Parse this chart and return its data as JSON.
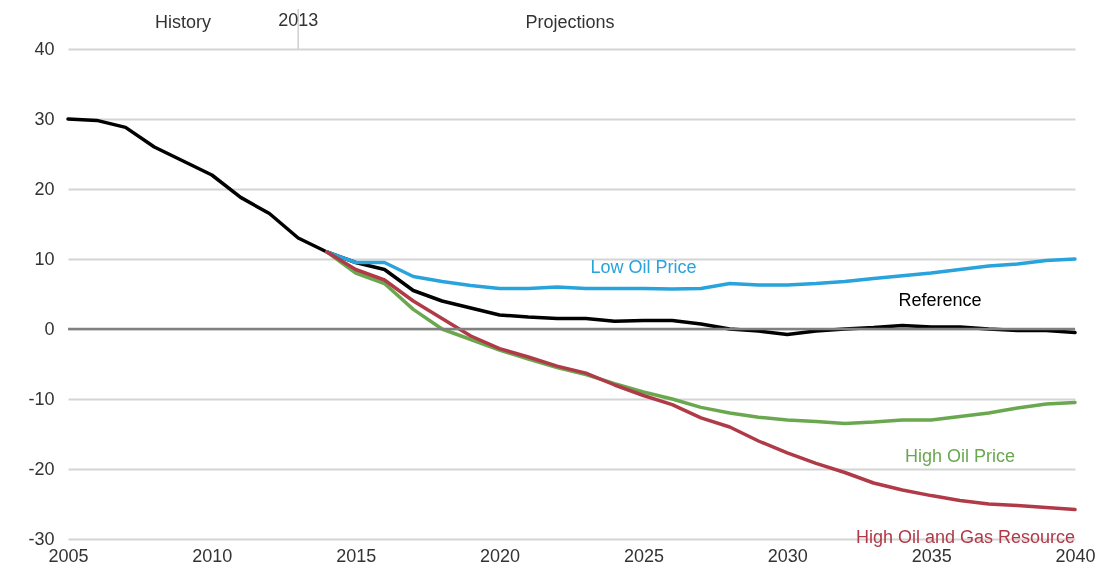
{
  "chart_data": {
    "type": "line",
    "x": [
      2005,
      2006,
      2007,
      2008,
      2009,
      2010,
      2011,
      2012,
      2013,
      2014,
      2015,
      2016,
      2017,
      2018,
      2019,
      2020,
      2021,
      2022,
      2023,
      2024,
      2025,
      2026,
      2027,
      2028,
      2029,
      2030,
      2031,
      2032,
      2033,
      2034,
      2035,
      2036,
      2037,
      2038,
      2039,
      2040
    ],
    "series": [
      {
        "name": "Reference",
        "color": "#000000",
        "values": [
          30,
          29.8,
          28.8,
          26,
          24,
          22,
          18.8,
          16.5,
          13,
          11,
          9.5,
          8.5,
          5.5,
          4,
          3,
          2,
          1.7,
          1.5,
          1.5,
          1.1,
          1.2,
          1.2,
          0.7,
          0,
          -0.3,
          -0.8,
          -0.3,
          0,
          0.2,
          0.5,
          0.3,
          0.3,
          0,
          -0.2,
          -0.2,
          -0.5
        ]
      },
      {
        "name": "Low Oil Price",
        "color": "#29a3dc",
        "x": [
          2014,
          2015,
          2016,
          2017,
          2018,
          2019,
          2020,
          2021,
          2022,
          2023,
          2024,
          2025,
          2026,
          2027,
          2028,
          2029,
          2030,
          2031,
          2032,
          2033,
          2034,
          2035,
          2036,
          2037,
          2038,
          2039,
          2040
        ],
        "values": [
          11,
          9.5,
          9.5,
          7.5,
          6.8,
          6.2,
          5.8,
          5.8,
          6,
          5.8,
          5.8,
          5.8,
          5.7,
          5.8,
          6.5,
          6.3,
          6.3,
          6.5,
          6.8,
          7.2,
          7.6,
          8,
          8.5,
          9,
          9.3,
          9.8,
          10
        ]
      },
      {
        "name": "High Oil Price",
        "color": "#6aa84f",
        "x": [
          2014,
          2015,
          2016,
          2017,
          2018,
          2019,
          2020,
          2021,
          2022,
          2023,
          2024,
          2025,
          2026,
          2027,
          2028,
          2029,
          2030,
          2031,
          2032,
          2033,
          2034,
          2035,
          2036,
          2037,
          2038,
          2039,
          2040
        ],
        "values": [
          11,
          8,
          6.5,
          2.8,
          0,
          -1.5,
          -3,
          -4.3,
          -5.5,
          -6.5,
          -7.8,
          -9,
          -10,
          -11.2,
          -12,
          -12.6,
          -13,
          -13.2,
          -13.5,
          -13.3,
          -13,
          -13,
          -12.5,
          -12,
          -11.3,
          -10.7,
          -10.5
        ]
      },
      {
        "name": "High Oil and Gas Resource",
        "color": "#b03a48",
        "x": [
          2014,
          2015,
          2016,
          2017,
          2018,
          2019,
          2020,
          2021,
          2022,
          2023,
          2024,
          2025,
          2026,
          2027,
          2028,
          2029,
          2030,
          2031,
          2032,
          2033,
          2034,
          2035,
          2036,
          2037,
          2038,
          2039,
          2040
        ],
        "values": [
          11,
          8.5,
          7,
          4,
          1.5,
          -1,
          -2.8,
          -4,
          -5.3,
          -6.3,
          -8,
          -9.5,
          -10.8,
          -12.7,
          -14,
          -16,
          -17.7,
          -19.2,
          -20.5,
          -22,
          -23,
          -23.8,
          -24.5,
          -25,
          -25.2,
          -25.5,
          -25.8
        ]
      }
    ],
    "xlim": [
      2005,
      2040
    ],
    "xticks": [
      2005,
      2010,
      2015,
      2020,
      2025,
      2030,
      2035,
      2040
    ],
    "ylim": [
      -30,
      40
    ],
    "yticks": [
      -30,
      -20,
      -10,
      0,
      10,
      20,
      30,
      40
    ],
    "grid": "y",
    "legend": false,
    "marker": "none",
    "line_style": "solid",
    "ref_lines": [
      {
        "axis": "x",
        "value": 2013,
        "label": "2013",
        "color": "#d0d0d0"
      }
    ],
    "annotations": [
      "History",
      "Projections"
    ]
  }
}
